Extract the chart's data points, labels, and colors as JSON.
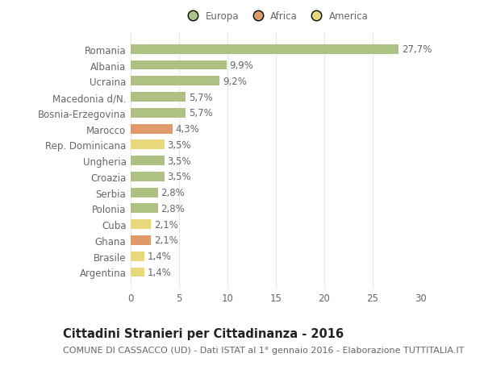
{
  "categories": [
    "Argentina",
    "Brasile",
    "Ghana",
    "Cuba",
    "Polonia",
    "Serbia",
    "Croazia",
    "Ungheria",
    "Rep. Dominicana",
    "Marocco",
    "Bosnia-Erzegovina",
    "Macedonia d/N.",
    "Ucraina",
    "Albania",
    "Romania"
  ],
  "values": [
    1.4,
    1.4,
    2.1,
    2.1,
    2.8,
    2.8,
    3.5,
    3.5,
    3.5,
    4.3,
    5.7,
    5.7,
    9.2,
    9.9,
    27.7
  ],
  "labels": [
    "1,4%",
    "1,4%",
    "2,1%",
    "2,1%",
    "2,8%",
    "2,8%",
    "3,5%",
    "3,5%",
    "3,5%",
    "4,3%",
    "5,7%",
    "5,7%",
    "9,2%",
    "9,9%",
    "27,7%"
  ],
  "colors": [
    "#e8d87c",
    "#e8d87c",
    "#e09a6a",
    "#e8d87c",
    "#adc182",
    "#adc182",
    "#adc182",
    "#adc182",
    "#e8d87c",
    "#e09a6a",
    "#adc182",
    "#adc182",
    "#adc182",
    "#adc182",
    "#adc182"
  ],
  "legend_labels": [
    "Europa",
    "Africa",
    "America"
  ],
  "legend_colors": [
    "#adc182",
    "#e09a6a",
    "#e8d87c"
  ],
  "title": "Cittadini Stranieri per Cittadinanza - 2016",
  "subtitle": "COMUNE DI CASSACCO (UD) - Dati ISTAT al 1° gennaio 2016 - Elaborazione TUTTITALIA.IT",
  "xlim": [
    0,
    30
  ],
  "xticks": [
    0,
    5,
    10,
    15,
    20,
    25,
    30
  ],
  "background_color": "#ffffff",
  "grid_color": "#e8e8e8",
  "bar_height": 0.6,
  "label_fontsize": 8.5,
  "ytick_fontsize": 8.5,
  "xtick_fontsize": 8.5,
  "title_fontsize": 10.5,
  "subtitle_fontsize": 8.0,
  "text_color": "#666666",
  "title_color": "#222222"
}
